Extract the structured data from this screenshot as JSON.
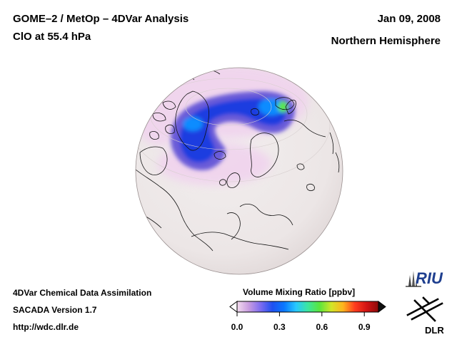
{
  "header": {
    "title": "GOME–2 / MetOp – 4DVar Analysis",
    "subtitle": "ClO at 55.4 hPa",
    "date": "Jan 09, 2008",
    "region": "Northern Hemisphere"
  },
  "footer": {
    "line1": "4DVar Chemical Data Assimilation",
    "line2": "SACADA Version 1.7",
    "line3": "http://wdc.dlr.de"
  },
  "colorbar": {
    "title": "Volume Mixing Ratio [ppbv]",
    "ticks": [
      {
        "label": "0.0",
        "value": 0.0
      },
      {
        "label": "0.3",
        "value": 0.3
      },
      {
        "label": "0.6",
        "value": 0.6
      },
      {
        "label": "0.9",
        "value": 0.9
      }
    ],
    "range": [
      0.0,
      1.0
    ],
    "colors": [
      "#f4dcef",
      "#c89ce0",
      "#7c6cf0",
      "#1e50f0",
      "#0a78ff",
      "#28c8ff",
      "#3ce6a0",
      "#5ae63c",
      "#d2e628",
      "#ffb41e",
      "#ff3c1e",
      "#d21414",
      "#8c0a0a"
    ]
  },
  "logos": {
    "riu": "RIU",
    "dlr": "DLR"
  },
  "map_colors": {
    "globe_fill": "#efeaea",
    "haze": "#f0d2ee",
    "vortex_outer": "#6a5cd8",
    "vortex_core": "#1e3ce0",
    "vortex_bright": "#0a8cff",
    "hotspot": "#5ae64a"
  }
}
